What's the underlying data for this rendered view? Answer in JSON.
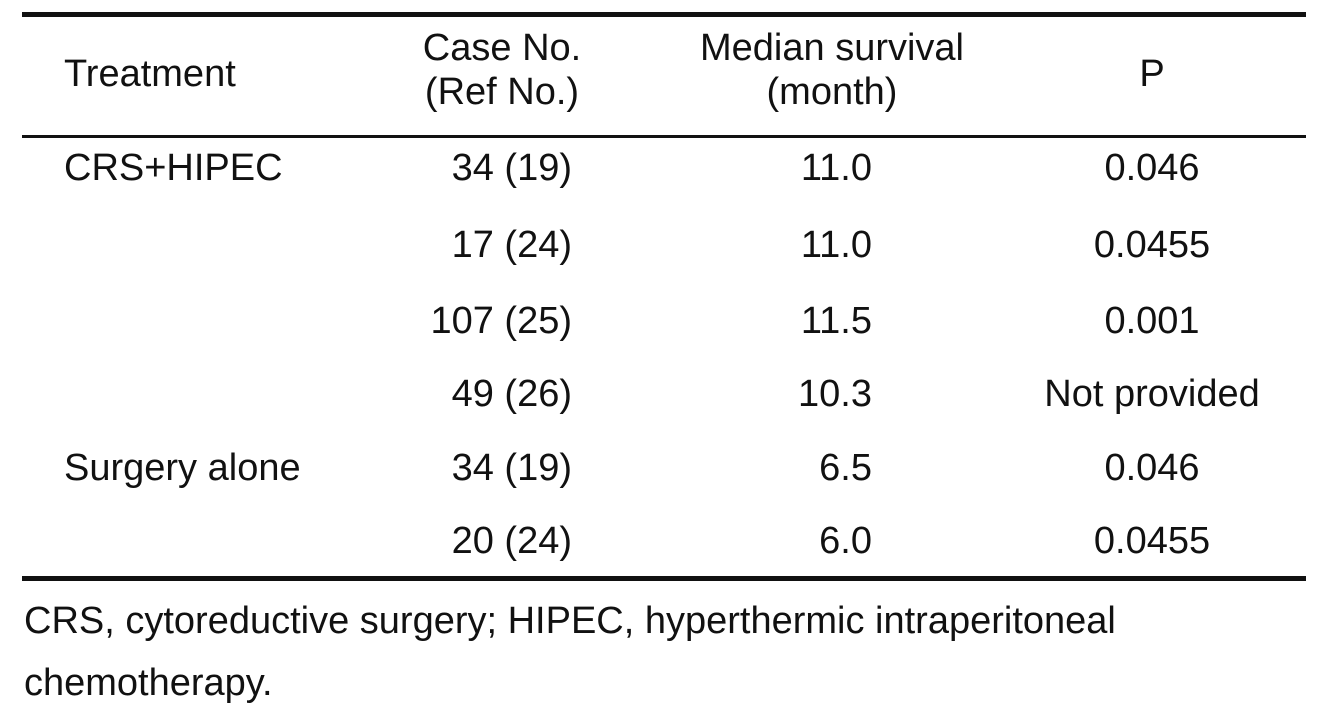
{
  "table": {
    "headers": {
      "treatment": "Treatment",
      "case_line1": "Case No.",
      "case_line2": "(Ref No.)",
      "survival_line1": "Median survival",
      "survival_line2": "(month)",
      "p": "P"
    },
    "rows": [
      {
        "treatment": "CRS+HIPEC",
        "case": "34 (19)",
        "survival": "11.0",
        "p": "0.046"
      },
      {
        "treatment": "",
        "case": "17 (24)",
        "survival": "11.0",
        "p": "0.0455"
      },
      {
        "treatment": "",
        "case": "107 (25)",
        "survival": "11.5",
        "p": "0.001"
      },
      {
        "treatment": "",
        "case": "49 (26)",
        "survival": "10.3",
        "p": "Not provided"
      },
      {
        "treatment": "Surgery alone",
        "case": "34 (19)",
        "survival": "6.5",
        "p": "0.046"
      },
      {
        "treatment": "",
        "case": "20 (24)",
        "survival": "6.0",
        "p": "0.0455"
      }
    ]
  },
  "footnote": "CRS, cytoreductive surgery; HIPEC, hyperthermic intraperitoneal chemotherapy."
}
